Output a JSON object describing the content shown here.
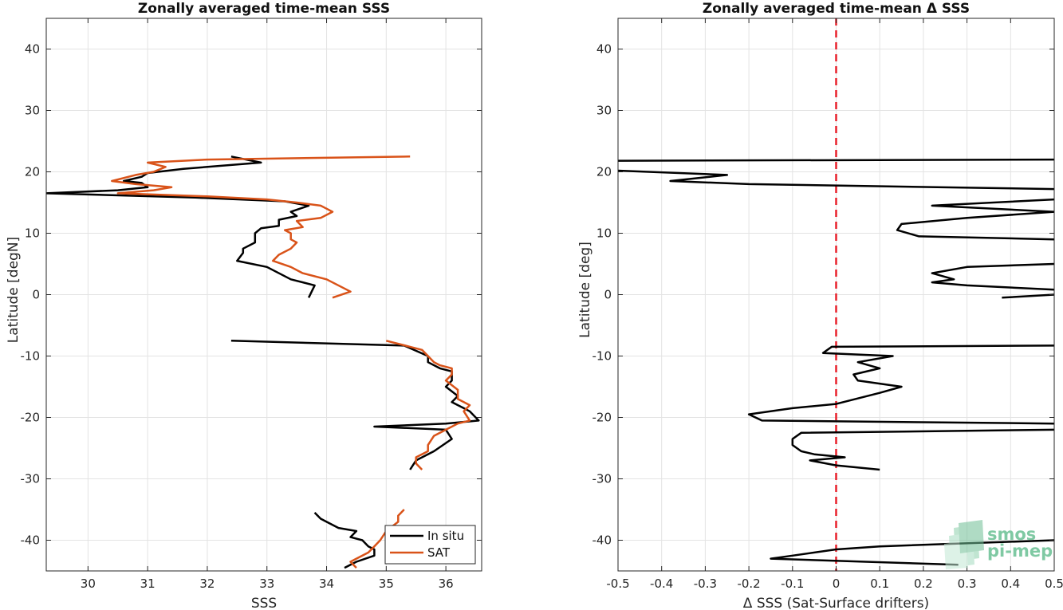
{
  "chart_data": [
    {
      "type": "line",
      "title": "Zonally averaged time-mean SSS",
      "xlabel": "SSS",
      "ylabel": "Latitude [degN]",
      "xlim": [
        29.3,
        36.6
      ],
      "ylim": [
        -45,
        45
      ],
      "xticks": [
        30,
        31,
        32,
        33,
        34,
        35,
        36
      ],
      "yticks": [
        -40,
        -30,
        -20,
        -10,
        0,
        10,
        20,
        30,
        40
      ],
      "grid": true,
      "legend": "bottom-right",
      "series": [
        {
          "name": "In situ",
          "color": "#000000",
          "segments": [
            [
              [
                32.4,
                22.5
              ],
              [
                32.9,
                21.5
              ],
              [
                31.6,
                20.5
              ],
              [
                31.0,
                19.8
              ],
              [
                30.9,
                19.2
              ],
              [
                30.6,
                18.5
              ],
              [
                30.9,
                18.2
              ],
              [
                31.0,
                17.5
              ],
              [
                30.5,
                17.0
              ],
              [
                29.3,
                16.5
              ],
              [
                31.8,
                15.8
              ],
              [
                33.3,
                15.2
              ],
              [
                33.7,
                14.5
              ],
              [
                33.4,
                13.5
              ],
              [
                33.5,
                12.8
              ],
              [
                33.2,
                12.2
              ],
              [
                33.2,
                11.2
              ],
              [
                32.9,
                10.8
              ],
              [
                32.8,
                10.0
              ],
              [
                32.8,
                8.5
              ],
              [
                32.6,
                7.5
              ],
              [
                32.6,
                6.8
              ],
              [
                32.5,
                5.5
              ],
              [
                33.0,
                4.5
              ],
              [
                33.4,
                2.5
              ],
              [
                33.8,
                1.5
              ],
              [
                33.7,
                -0.5
              ]
            ],
            [
              [
                32.4,
                -7.5
              ],
              [
                35.3,
                -8.3
              ],
              [
                35.7,
                -10.0
              ],
              [
                35.7,
                -11.0
              ],
              [
                35.9,
                -12.0
              ],
              [
                36.1,
                -12.5
              ],
              [
                36.1,
                -14.0
              ],
              [
                36.0,
                -15.0
              ],
              [
                36.2,
                -16.5
              ],
              [
                36.1,
                -17.5
              ],
              [
                36.3,
                -18.5
              ],
              [
                36.4,
                -19.0
              ],
              [
                36.5,
                -20.0
              ],
              [
                36.55,
                -20.5
              ],
              [
                36.0,
                -21.0
              ],
              [
                34.8,
                -21.5
              ],
              [
                36.0,
                -22.0
              ],
              [
                36.1,
                -23.5
              ],
              [
                35.8,
                -25.5
              ],
              [
                35.5,
                -27.0
              ],
              [
                35.4,
                -28.5
              ]
            ],
            [
              [
                33.8,
                -35.5
              ],
              [
                33.9,
                -36.5
              ],
              [
                34.0,
                -37.0
              ],
              [
                34.2,
                -38.0
              ],
              [
                34.5,
                -38.5
              ],
              [
                34.4,
                -39.5
              ],
              [
                34.6,
                -40.0
              ],
              [
                34.7,
                -41.0
              ],
              [
                34.8,
                -41.5
              ],
              [
                34.8,
                -42.5
              ],
              [
                34.5,
                -43.5
              ],
              [
                34.3,
                -44.5
              ]
            ]
          ]
        },
        {
          "name": "SAT",
          "color": "#d95319",
          "segments": [
            [
              [
                35.4,
                22.5
              ],
              [
                32.0,
                22.0
              ],
              [
                31.0,
                21.5
              ],
              [
                31.3,
                20.8
              ],
              [
                31.1,
                20.0
              ],
              [
                30.8,
                19.5
              ],
              [
                30.4,
                18.5
              ],
              [
                30.8,
                18.0
              ],
              [
                31.4,
                17.5
              ],
              [
                31.1,
                17.0
              ],
              [
                30.5,
                16.5
              ],
              [
                32.0,
                16.0
              ],
              [
                33.0,
                15.5
              ],
              [
                33.5,
                15.0
              ],
              [
                33.9,
                14.5
              ],
              [
                34.0,
                14.0
              ],
              [
                34.1,
                13.5
              ],
              [
                33.9,
                12.5
              ],
              [
                33.5,
                12.0
              ],
              [
                33.6,
                11.0
              ],
              [
                33.3,
                10.5
              ],
              [
                33.4,
                10.0
              ],
              [
                33.4,
                9.0
              ],
              [
                33.5,
                8.5
              ],
              [
                33.4,
                7.5
              ],
              [
                33.2,
                6.5
              ],
              [
                33.1,
                5.5
              ],
              [
                33.4,
                4.5
              ],
              [
                33.6,
                3.5
              ],
              [
                34.0,
                2.5
              ],
              [
                34.4,
                0.5
              ],
              [
                34.1,
                -0.5
              ]
            ],
            [
              [
                35.0,
                -7.5
              ],
              [
                35.4,
                -8.5
              ],
              [
                35.6,
                -9.0
              ],
              [
                35.7,
                -10.0
              ],
              [
                35.8,
                -11.0
              ],
              [
                35.9,
                -11.5
              ],
              [
                36.1,
                -12.0
              ],
              [
                36.1,
                -13.0
              ],
              [
                36.0,
                -14.0
              ],
              [
                36.2,
                -15.5
              ],
              [
                36.2,
                -17.0
              ],
              [
                36.4,
                -18.0
              ],
              [
                36.3,
                -19.0
              ],
              [
                36.4,
                -20.5
              ],
              [
                36.2,
                -21.0
              ],
              [
                36.0,
                -22.0
              ],
              [
                35.8,
                -23.0
              ],
              [
                35.7,
                -24.5
              ],
              [
                35.7,
                -25.5
              ],
              [
                35.5,
                -26.5
              ],
              [
                35.5,
                -27.5
              ],
              [
                35.6,
                -28.5
              ]
            ],
            [
              [
                35.3,
                -35.0
              ],
              [
                35.2,
                -36.0
              ],
              [
                35.2,
                -37.0
              ],
              [
                35.0,
                -38.5
              ],
              [
                34.9,
                -40.0
              ],
              [
                34.8,
                -41.0
              ],
              [
                34.7,
                -42.0
              ],
              [
                34.5,
                -43.0
              ],
              [
                34.4,
                -43.5
              ],
              [
                34.5,
                -44.5
              ]
            ]
          ]
        }
      ]
    },
    {
      "type": "line",
      "title": "Zonally averaged time-mean Δ SSS",
      "xlabel": "Δ SSS (Sat-Surface drifters)",
      "ylabel": "Latitude [deg]",
      "xlim": [
        -0.5,
        0.5
      ],
      "ylim": [
        -45,
        45
      ],
      "xticks": [
        -0.5,
        -0.4,
        -0.3,
        -0.2,
        -0.1,
        0,
        0.1,
        0.2,
        0.3,
        0.4,
        0.5
      ],
      "xtick_labels": [
        "-0.5",
        "-0.4",
        "-0.3",
        "-0.2",
        "-0.1",
        "0",
        "0.1",
        "0.2",
        "0.3",
        "0.4",
        "0.5"
      ],
      "yticks": [
        -40,
        -30,
        -20,
        -10,
        0,
        10,
        20,
        30,
        40
      ],
      "grid": true,
      "zero_line": {
        "x": 0,
        "color": "#e8212b",
        "style": "dashed"
      },
      "series": [
        {
          "color": "#000000",
          "segments": [
            [
              [
                0.5,
                22.0
              ],
              [
                -0.5,
                21.8
              ]
            ],
            [
              [
                -0.5,
                20.2
              ],
              [
                -0.25,
                19.5
              ],
              [
                -0.38,
                18.5
              ],
              [
                -0.2,
                18.0
              ],
              [
                0.5,
                17.2
              ]
            ],
            [
              [
                0.5,
                15.5
              ],
              [
                0.22,
                14.5
              ],
              [
                0.5,
                13.5
              ],
              [
                0.3,
                12.5
              ],
              [
                0.15,
                11.5
              ],
              [
                0.14,
                10.5
              ],
              [
                0.19,
                9.5
              ],
              [
                0.5,
                9.0
              ]
            ],
            [
              [
                0.5,
                5.0
              ],
              [
                0.3,
                4.5
              ],
              [
                0.22,
                3.5
              ],
              [
                0.27,
                2.5
              ],
              [
                0.22,
                2.0
              ],
              [
                0.3,
                1.5
              ],
              [
                0.5,
                0.8
              ]
            ],
            [
              [
                0.5,
                0.0
              ],
              [
                0.38,
                -0.5
              ]
            ],
            [
              [
                0.5,
                -8.3
              ],
              [
                -0.01,
                -8.5
              ],
              [
                -0.03,
                -9.5
              ],
              [
                0.13,
                -10.0
              ],
              [
                0.05,
                -11.0
              ],
              [
                0.1,
                -12.0
              ],
              [
                0.04,
                -13.0
              ],
              [
                0.05,
                -14.0
              ],
              [
                0.15,
                -15.0
              ],
              [
                0.1,
                -16.0
              ],
              [
                0.0,
                -17.8
              ],
              [
                -0.1,
                -18.5
              ],
              [
                -0.2,
                -19.5
              ],
              [
                -0.17,
                -20.5
              ],
              [
                0.5,
                -21.0
              ]
            ],
            [
              [
                0.5,
                -22.0
              ],
              [
                -0.08,
                -22.5
              ],
              [
                -0.1,
                -23.5
              ],
              [
                -0.1,
                -24.5
              ],
              [
                -0.08,
                -25.5
              ],
              [
                -0.05,
                -26.0
              ],
              [
                0.02,
                -26.5
              ],
              [
                -0.06,
                -27.0
              ],
              [
                0.0,
                -27.8
              ],
              [
                0.1,
                -28.5
              ]
            ],
            [
              [
                0.5,
                -40.0
              ],
              [
                0.1,
                -41.0
              ],
              [
                0.0,
                -41.5
              ],
              [
                -0.1,
                -42.5
              ],
              [
                -0.15,
                -43.0
              ],
              [
                0.28,
                -44.0
              ]
            ]
          ]
        }
      ]
    }
  ],
  "watermark": {
    "line1": "smos",
    "line2": "pi-mep"
  },
  "colors": {
    "grid": "#e3e3e3",
    "axis": "#262626",
    "zero_line": "#e8212b"
  }
}
